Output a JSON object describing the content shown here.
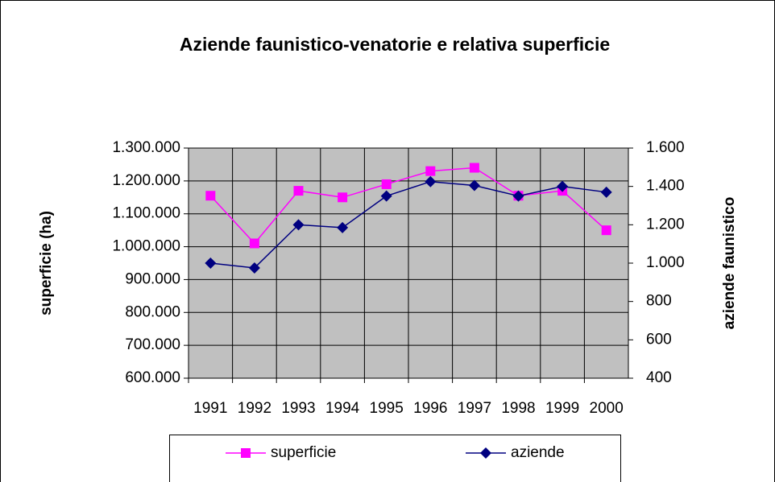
{
  "chart_data": {
    "type": "line",
    "title": "Aziende  faunistico-venatorie e relativa superficie",
    "categories": [
      "1991",
      "1992",
      "1993",
      "1994",
      "1995",
      "1996",
      "1997",
      "1998",
      "1999",
      "2000"
    ],
    "series": [
      {
        "name": "superficie",
        "color": "#ff00ff",
        "marker": "square",
        "values": [
          1155000,
          1010000,
          1170000,
          1150000,
          1190000,
          1230000,
          1240000,
          1155000,
          1170000,
          1050000
        ]
      },
      {
        "name": "aziende",
        "color": "#000080",
        "marker": "diamond",
        "axis": "y2",
        "values": [
          1000,
          975,
          1200,
          1185,
          1350,
          1425,
          1405,
          1350,
          1400,
          1370
        ]
      }
    ],
    "ylabel": "superficie (ha)",
    "y2label": "aziende faunistico",
    "ylim": [
      600000,
      1300000
    ],
    "yticks": [
      {
        "value": 600000,
        "label": "600.000"
      },
      {
        "value": 700000,
        "label": "700.000"
      },
      {
        "value": 800000,
        "label": "800.000"
      },
      {
        "value": 900000,
        "label": "900.000"
      },
      {
        "value": 1000000,
        "label": "1.000.000"
      },
      {
        "value": 1100000,
        "label": "1.100.000"
      },
      {
        "value": 1200000,
        "label": "1.200.000"
      },
      {
        "value": 1300000,
        "label": "1.300.000"
      }
    ],
    "y2lim": [
      400,
      1600
    ],
    "y2ticks": [
      400,
      600,
      800,
      {
        "value": 1000,
        "label": "1.000"
      },
      {
        "value": 1200,
        "label": "1.200"
      },
      {
        "value": 1400,
        "label": "1.400"
      },
      {
        "value": 1600,
        "label": "1.600"
      }
    ],
    "grid": true,
    "legend": "bottom"
  }
}
